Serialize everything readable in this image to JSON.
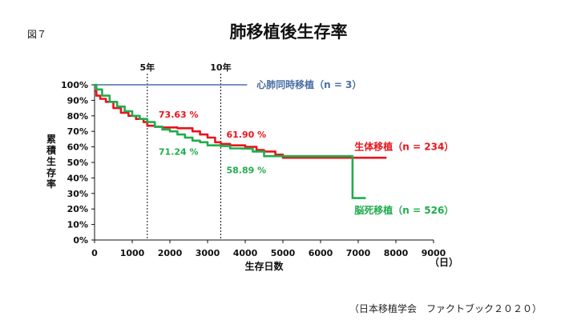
{
  "figure_label": "図７",
  "source": "（日本移植学会　ファクトブック２０２０）",
  "chart_data": {
    "type": "line",
    "title": "肺移植後生存率",
    "xlabel": "生存日数",
    "xunit": "（日）",
    "ylabel": "累積生存率",
    "xlim": [
      0,
      9000
    ],
    "ylim": [
      0,
      100
    ],
    "xticks": [
      0,
      1000,
      2000,
      3000,
      4000,
      5000,
      6000,
      7000,
      8000,
      9000
    ],
    "yticks": [
      0,
      10,
      20,
      30,
      40,
      50,
      60,
      70,
      80,
      90,
      100
    ],
    "ytick_labels": [
      "0%",
      "10%",
      "20%",
      "30%",
      "40%",
      "50%",
      "60%",
      "70%",
      "80%",
      "90%",
      "100%"
    ],
    "grid": false,
    "reference_lines": [
      {
        "label": "5年",
        "x": 1400
      },
      {
        "label": "10年",
        "x": 3350
      }
    ],
    "series": [
      {
        "name": "心肺同時移植（n = 3）",
        "color": "#4a6fa5",
        "label_at": [
          4300,
          100
        ],
        "points": [
          [
            0,
            100
          ],
          [
            4050,
            100
          ]
        ]
      },
      {
        "name": "生体移植（n = 234）",
        "color": "#e8141c",
        "label_at": [
          6900,
          60
        ],
        "points": [
          [
            0,
            96
          ],
          [
            50,
            93
          ],
          [
            150,
            91
          ],
          [
            300,
            89
          ],
          [
            500,
            85
          ],
          [
            700,
            82
          ],
          [
            900,
            80
          ],
          [
            1100,
            78
          ],
          [
            1300,
            76
          ],
          [
            1400,
            73.6
          ],
          [
            1600,
            73
          ],
          [
            1800,
            72.5
          ],
          [
            2000,
            72.5
          ],
          [
            2200,
            72
          ],
          [
            2600,
            70
          ],
          [
            2800,
            68
          ],
          [
            3000,
            66
          ],
          [
            3200,
            63
          ],
          [
            3350,
            61.9
          ],
          [
            3600,
            61
          ],
          [
            4000,
            60
          ],
          [
            4300,
            58
          ],
          [
            4500,
            57
          ],
          [
            4800,
            55
          ],
          [
            5000,
            53
          ],
          [
            6000,
            53
          ],
          [
            7000,
            53
          ],
          [
            7750,
            53
          ]
        ]
      },
      {
        "name": "脳死移植（n = 526）",
        "color": "#1fad4b",
        "label_at": [
          6900,
          19
        ],
        "points": [
          [
            0,
            100
          ],
          [
            50,
            97
          ],
          [
            200,
            93
          ],
          [
            400,
            89
          ],
          [
            600,
            86
          ],
          [
            800,
            83
          ],
          [
            1000,
            80
          ],
          [
            1200,
            78
          ],
          [
            1400,
            76
          ],
          [
            1600,
            73
          ],
          [
            1800,
            71.2
          ],
          [
            2000,
            70
          ],
          [
            2200,
            68
          ],
          [
            2400,
            66
          ],
          [
            2600,
            64
          ],
          [
            2800,
            63
          ],
          [
            3000,
            61
          ],
          [
            3350,
            60.5
          ],
          [
            3600,
            59
          ],
          [
            3900,
            58.9
          ],
          [
            4200,
            57
          ],
          [
            4500,
            54
          ],
          [
            5000,
            54
          ],
          [
            6000,
            54
          ],
          [
            6850,
            54
          ],
          [
            6850,
            27
          ],
          [
            7200,
            27
          ]
        ]
      }
    ],
    "annotations": [
      {
        "text": "73.63 %",
        "color": "#e8141c",
        "x": 1700,
        "y": 81
      },
      {
        "text": "71.24 %",
        "color": "#1fad4b",
        "x": 1700,
        "y": 57
      },
      {
        "text": "61.90 %",
        "color": "#e8141c",
        "x": 3500,
        "y": 68
      },
      {
        "text": "58.89 %",
        "color": "#1fad4b",
        "x": 3500,
        "y": 45
      }
    ]
  }
}
